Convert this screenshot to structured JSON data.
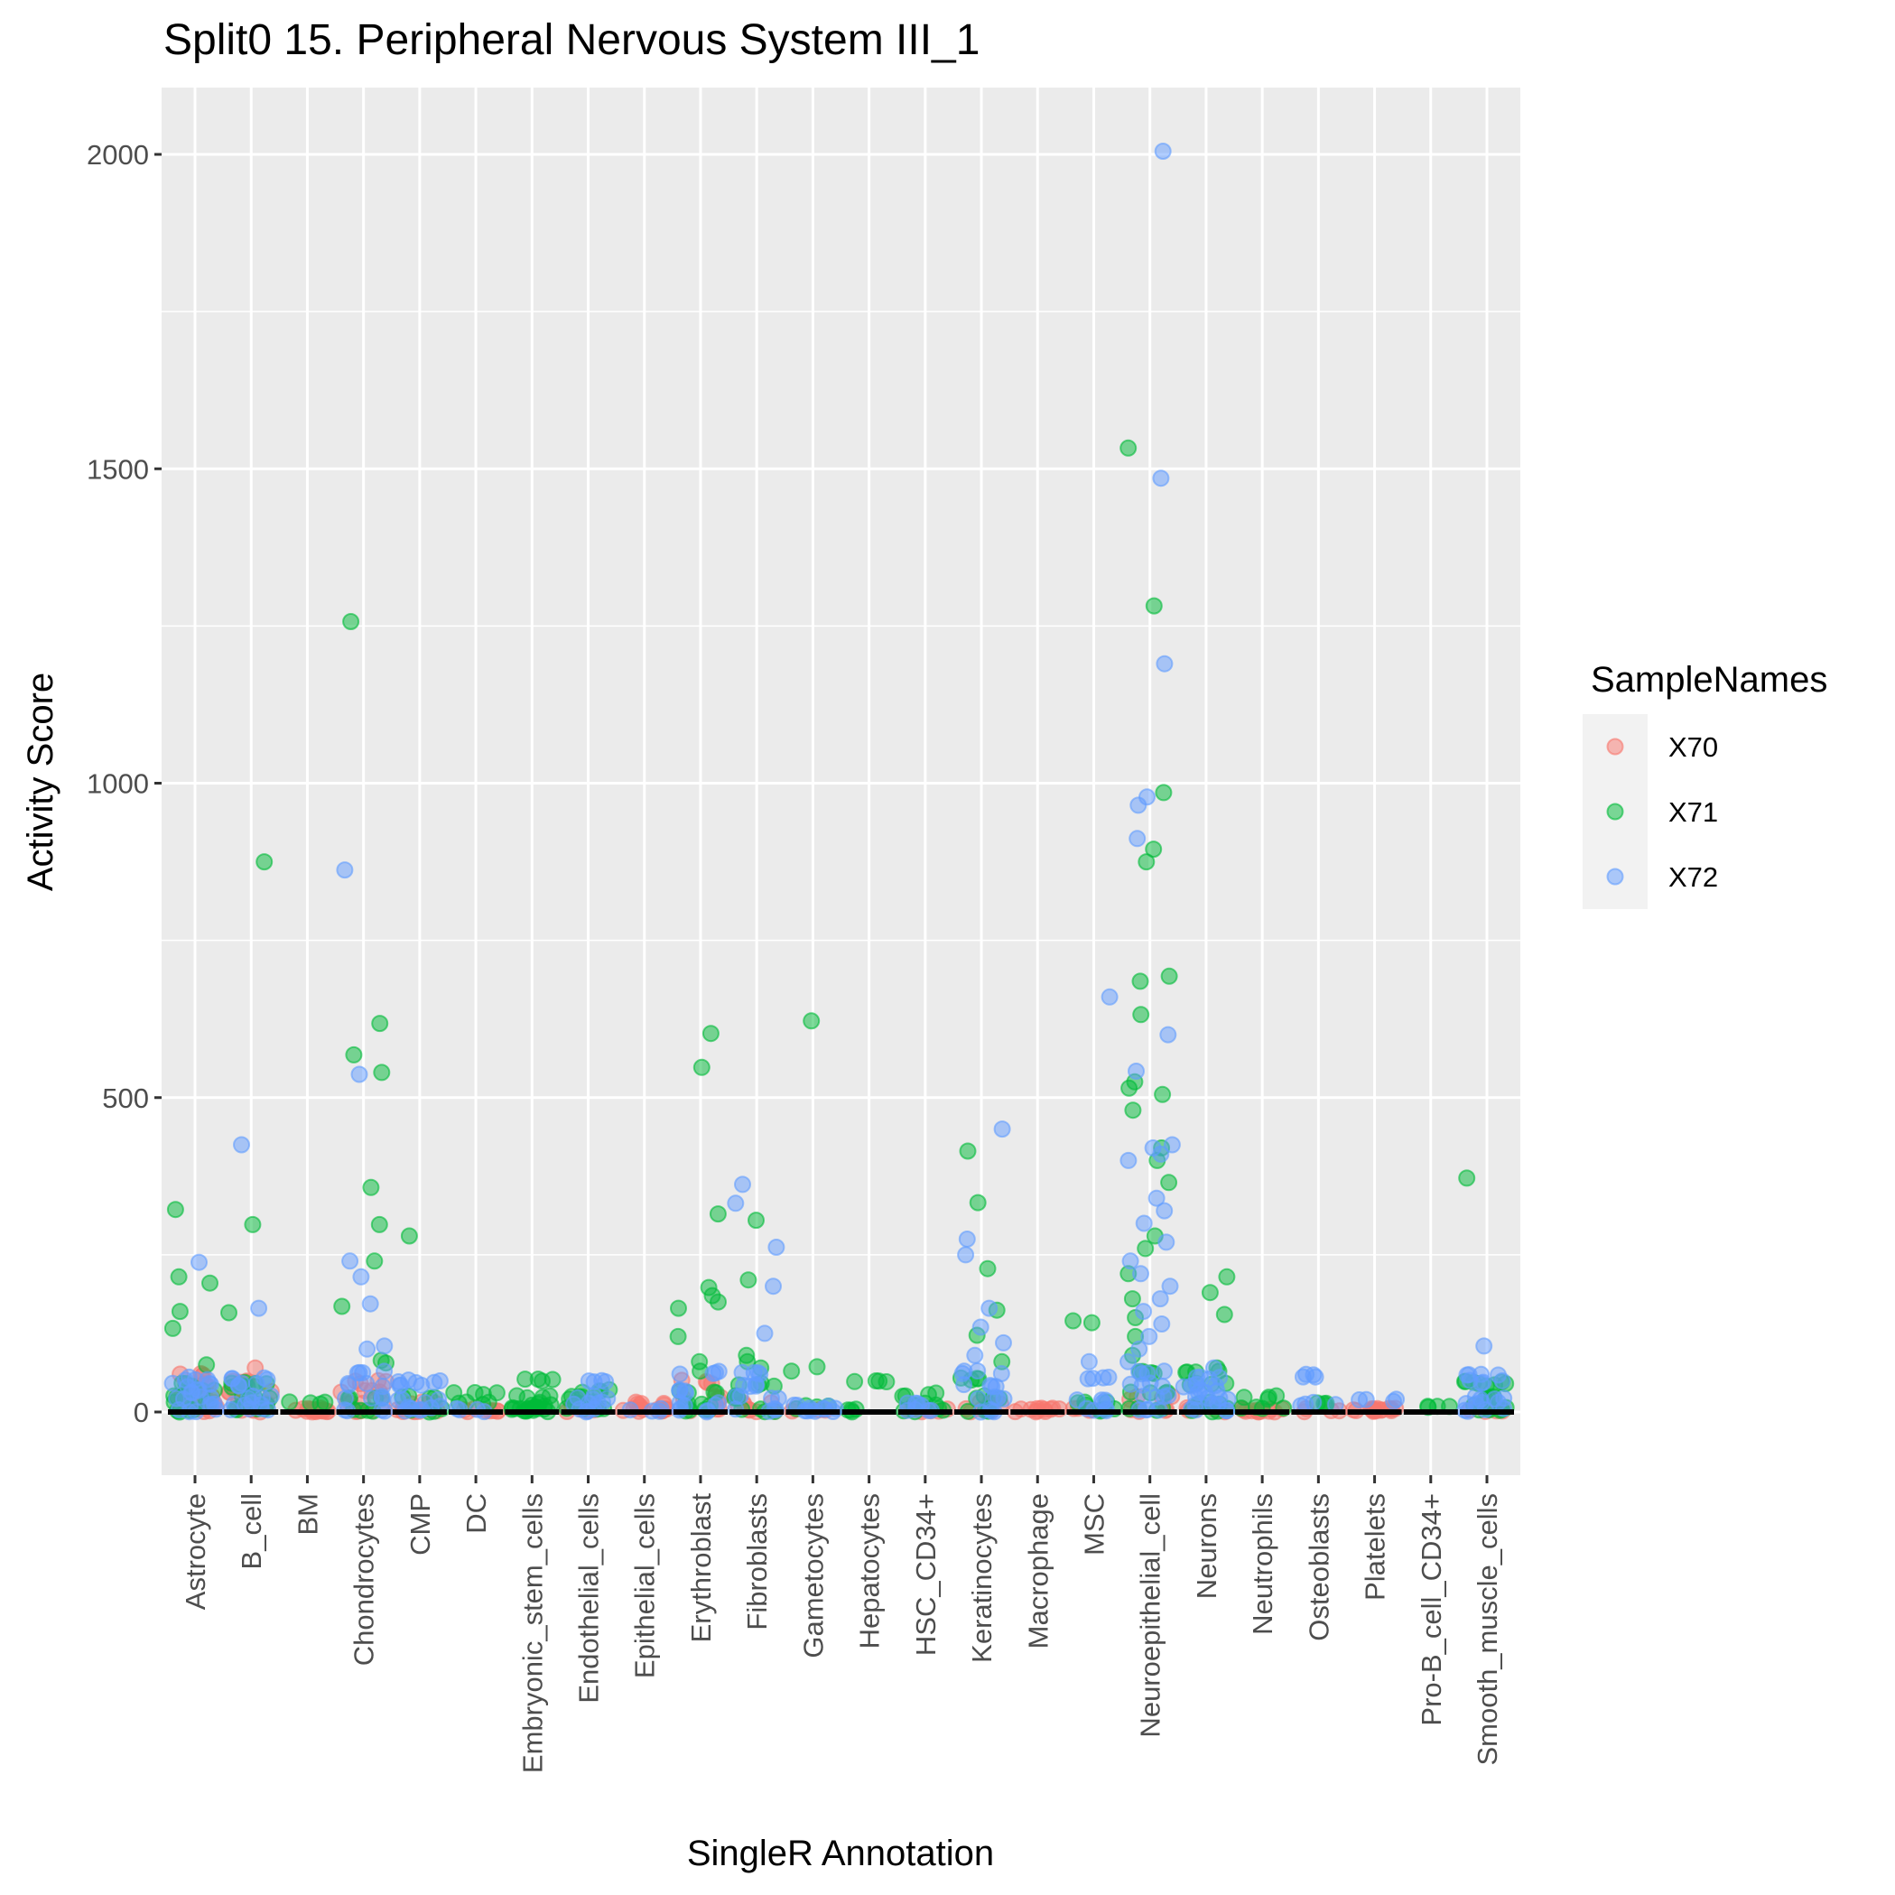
{
  "chart_data": {
    "type": "scatter",
    "subtype": "jitter strip plot by category with boxplot overlay",
    "title": "Split0 15. Peripheral Nervous System III_1",
    "xlabel": "SingleR Annotation",
    "ylabel": "Activity Score",
    "ylim": [
      -100,
      2080
    ],
    "yticks": [
      0,
      500,
      1000,
      1500,
      2000
    ],
    "ytick_labels": [
      "0",
      "500",
      "1000",
      "1500",
      "2000"
    ],
    "grid": true,
    "legend": {
      "title": "SampleNames",
      "position": "right",
      "entries": [
        {
          "name": "X70",
          "color": "#F8766D"
        },
        {
          "name": "X71",
          "color": "#00BA38"
        },
        {
          "name": "X72",
          "color": "#619CFF"
        }
      ]
    },
    "categories": [
      "Astrocyte",
      "B_cell",
      "BM",
      "Chondrocytes",
      "CMP",
      "DC",
      "Embryonic_stem_cells",
      "Endothelial_cells",
      "Epithelial_cells",
      "Erythroblast",
      "Fibroblasts",
      "Gametocytes",
      "Hepatocytes",
      "HSC_CD34+",
      "Keratinocytes",
      "Macrophage",
      "MSC",
      "Neuroepithelial_cell",
      "Neurons",
      "Neutrophils",
      "Osteoblasts",
      "Platelets",
      "Pro-B_cell_CD34+",
      "Smooth_muscle_cells"
    ],
    "series": [
      {
        "name": "X70",
        "points": {
          "Astrocyte": [
            55,
            40,
            20,
            10,
            5,
            0
          ],
          "B_cell": [
            70,
            45,
            30,
            10,
            0
          ],
          "BM": [
            0,
            0,
            0,
            0
          ],
          "Chondrocytes": [
            45,
            30,
            10,
            0
          ],
          "CMP": [
            10,
            0,
            0
          ],
          "DC": [
            0,
            0
          ],
          "Embryonic_stem_cells": [],
          "Endothelial_cells": [
            5,
            0
          ],
          "Epithelial_cells": [
            10,
            5,
            0,
            0
          ],
          "Erythroblast": [
            45,
            20,
            0
          ],
          "Fibroblasts": [
            10,
            0
          ],
          "Gametocytes": [
            0
          ],
          "Hepatocytes": [],
          "HSC_CD34+": [
            0,
            0
          ],
          "Keratinocytes": [
            10,
            0
          ],
          "Macrophage": [
            0,
            0,
            0
          ],
          "MSC": [
            0
          ],
          "Neuroepithelial_cell": [
            20,
            0
          ],
          "Neurons": [
            5,
            0
          ],
          "Neutrophils": [
            0,
            0,
            0
          ],
          "Osteoblasts": [
            0
          ],
          "Platelets": [
            0,
            0,
            0,
            0
          ],
          "Pro-B_cell_CD34+": [],
          "Smooth_muscle_cells": [
            0
          ]
        }
      },
      {
        "name": "X71",
        "points": {
          "Astrocyte": [
            322,
            215,
            205,
            160,
            133,
            75,
            40,
            30,
            20,
            10,
            0
          ],
          "B_cell": [
            875,
            298,
            158,
            45,
            35,
            20,
            10,
            0
          ],
          "BM": [
            12
          ],
          "Chondrocytes": [
            1257,
            618,
            568,
            540,
            357,
            298,
            240,
            168,
            82,
            78,
            20,
            0
          ],
          "CMP": [
            280,
            20,
            0
          ],
          "DC": [
            25,
            10
          ],
          "Embryonic_stem_cells": [
            48,
            20,
            10,
            5,
            0,
            0,
            0
          ],
          "Endothelial_cells": [
            30,
            20,
            10,
            0
          ],
          "Epithelial_cells": [],
          "Erythroblast": [
            602,
            548,
            315,
            198,
            185,
            175,
            165,
            120,
            80,
            65,
            30,
            10,
            0
          ],
          "Fibroblasts": [
            305,
            210,
            90,
            80,
            70,
            40,
            20,
            0
          ],
          "Gametocytes": [
            622,
            72,
            65,
            5
          ],
          "Hepatocytes": [
            45,
            0
          ],
          "HSC_CD34+": [
            25,
            10,
            0
          ],
          "Keratinocytes": [
            415,
            333,
            228,
            162,
            122,
            80,
            50,
            20,
            0
          ],
          "Macrophage": [],
          "MSC": [
            145,
            142,
            10,
            0
          ],
          "Neuroepithelial_cell": [
            1533,
            1282,
            985,
            895,
            875,
            693,
            685,
            632,
            525,
            515,
            505,
            480,
            420,
            400,
            365,
            280,
            260,
            220,
            180,
            150,
            120,
            90,
            60,
            30,
            0
          ],
          "Neurons": [
            215,
            190,
            155,
            70,
            60,
            40,
            10,
            0
          ],
          "Neutrophils": [
            20,
            5
          ],
          "Osteoblasts": [
            10
          ],
          "Platelets": [],
          "Pro-B_cell_CD34+": [
            5
          ],
          "Smooth_muscle_cells": [
            372,
            45,
            40,
            20,
            5,
            0
          ]
        }
      },
      {
        "name": "X72",
        "points": {
          "Astrocyte": [
            238,
            50,
            40,
            30,
            20,
            10,
            0
          ],
          "B_cell": [
            425,
            165,
            50,
            40,
            20,
            10,
            0
          ],
          "BM": [],
          "Chondrocytes": [
            862,
            537,
            240,
            215,
            172,
            105,
            100,
            60,
            40,
            20,
            0
          ],
          "CMP": [
            45,
            42,
            15,
            5,
            0
          ],
          "DC": [
            0
          ],
          "Embryonic_stem_cells": [],
          "Endothelial_cells": [
            48,
            20,
            10,
            0
          ],
          "Epithelial_cells": [
            0
          ],
          "Erythroblast": [
            60,
            30,
            10,
            0
          ],
          "Fibroblasts": [
            362,
            332,
            262,
            200,
            125,
            60,
            40,
            20,
            0
          ],
          "Gametocytes": [
            5,
            0,
            0
          ],
          "Hepatocytes": [],
          "HSC_CD34+": [
            10,
            0
          ],
          "Keratinocytes": [
            450,
            275,
            250,
            165,
            135,
            110,
            90,
            60,
            40,
            20,
            0
          ],
          "Macrophage": [],
          "MSC": [
            660,
            80,
            50,
            15,
            0
          ],
          "Neuroepithelial_cell": [
            2005,
            1485,
            1190,
            978,
            965,
            912,
            600,
            542,
            425,
            420,
            410,
            400,
            340,
            320,
            300,
            270,
            240,
            220,
            200,
            180,
            160,
            140,
            120,
            100,
            80,
            60,
            40,
            20,
            0
          ],
          "Neurons": [
            70,
            50,
            40,
            30,
            20,
            10,
            0
          ],
          "Neutrophils": [],
          "Osteoblasts": [
            55,
            10
          ],
          "Platelets": [
            15
          ],
          "Pro-B_cell_CD34+": [],
          "Smooth_muscle_cells": [
            105,
            58,
            45,
            20,
            10,
            0
          ]
        }
      }
    ]
  }
}
